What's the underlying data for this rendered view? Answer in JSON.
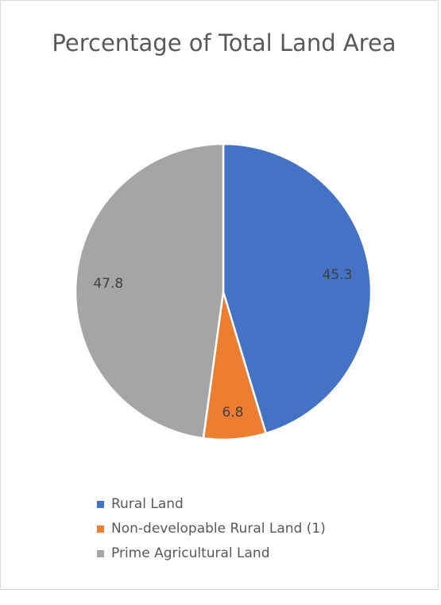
{
  "chart_data": {
    "type": "pie",
    "title": "Percentage of Total Land Area",
    "slices": [
      {
        "label": "Rural Land",
        "value": 45.3,
        "display": "45.3",
        "color": "#4472C4"
      },
      {
        "label": "Non-developable Rural Land (1)",
        "value": 6.8,
        "display": "6.8",
        "color": "#ED7D31"
      },
      {
        "label": "Prime Agricultural Land",
        "value": 47.8,
        "display": "47.8",
        "color": "#A5A5A5"
      }
    ],
    "start_angle": "12 o'clock",
    "direction": "clockwise",
    "legend_position": "bottom",
    "data_labels": "inside"
  }
}
